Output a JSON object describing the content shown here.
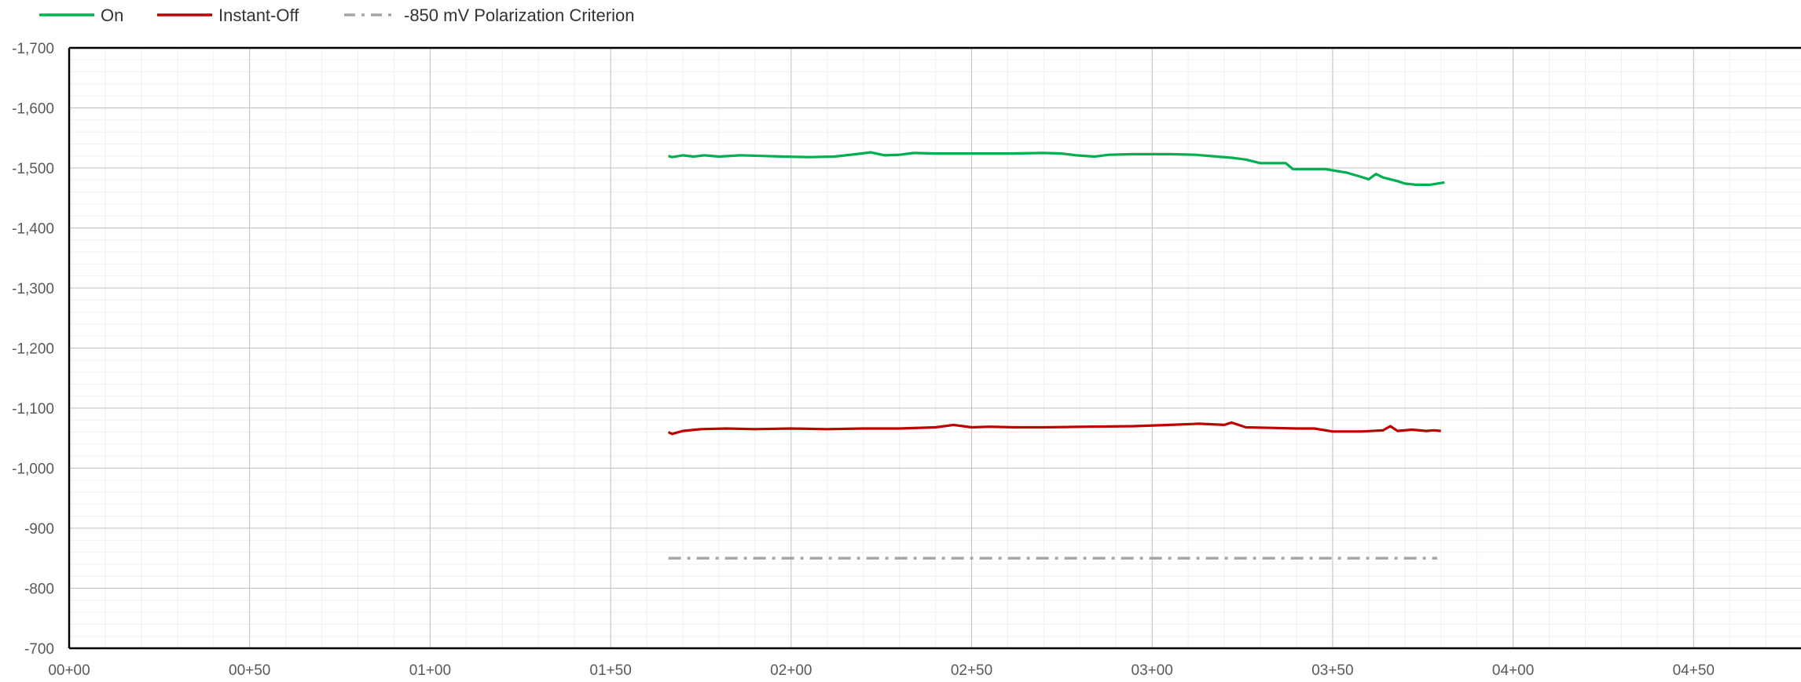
{
  "chart_data": {
    "type": "line",
    "title": "",
    "xlabel": "",
    "ylabel": "",
    "x_ticks": [
      "00+00",
      "00+50",
      "01+00",
      "01+50",
      "02+00",
      "02+50",
      "03+00",
      "03+50",
      "04+00",
      "04+50"
    ],
    "xlim": [
      0,
      480
    ],
    "ylim": [
      -700,
      -1700
    ],
    "y_ticks": [
      -1700,
      -1600,
      -1500,
      -1400,
      -1300,
      -1200,
      -1100,
      -1000,
      -900,
      -800,
      -700
    ],
    "y_tick_labels": [
      "-1,700",
      "-1,600",
      "-1,500",
      "-1,400",
      "-1,300",
      "-1,200",
      "-1,100",
      "-1,000",
      "-900",
      "-800",
      "-700"
    ],
    "grid": true,
    "legend_position": "top-left",
    "series": [
      {
        "name": "On",
        "color": "#00B050",
        "style": "solid",
        "points": [
          [
            166,
            -1520
          ],
          [
            167,
            -1518
          ],
          [
            170,
            -1521
          ],
          [
            173,
            -1519
          ],
          [
            176,
            -1521
          ],
          [
            180,
            -1519
          ],
          [
            186,
            -1521
          ],
          [
            192,
            -1520
          ],
          [
            198,
            -1519
          ],
          [
            205,
            -1518
          ],
          [
            212,
            -1519
          ],
          [
            218,
            -1523
          ],
          [
            222,
            -1526
          ],
          [
            226,
            -1521
          ],
          [
            230,
            -1522
          ],
          [
            234,
            -1525
          ],
          [
            240,
            -1524
          ],
          [
            250,
            -1524
          ],
          [
            260,
            -1524
          ],
          [
            270,
            -1525
          ],
          [
            275,
            -1524
          ],
          [
            279,
            -1521
          ],
          [
            284,
            -1519
          ],
          [
            288,
            -1522
          ],
          [
            295,
            -1523
          ],
          [
            305,
            -1523
          ],
          [
            312,
            -1522
          ],
          [
            318,
            -1519
          ],
          [
            322,
            -1517
          ],
          [
            326,
            -1514
          ],
          [
            330,
            -1508
          ],
          [
            337,
            -1508
          ],
          [
            339,
            -1498
          ],
          [
            348,
            -1498
          ],
          [
            354,
            -1492
          ],
          [
            358,
            -1485
          ],
          [
            360,
            -1481
          ],
          [
            362,
            -1490
          ],
          [
            364,
            -1484
          ],
          [
            368,
            -1478
          ],
          [
            370,
            -1474
          ],
          [
            373,
            -1472
          ],
          [
            377,
            -1472
          ],
          [
            379,
            -1474
          ],
          [
            381,
            -1476
          ]
        ]
      },
      {
        "name": "Instant-Off",
        "color": "#C00000",
        "style": "solid",
        "points": [
          [
            166,
            -1060
          ],
          [
            167,
            -1057
          ],
          [
            170,
            -1062
          ],
          [
            175,
            -1065
          ],
          [
            182,
            -1066
          ],
          [
            190,
            -1065
          ],
          [
            200,
            -1066
          ],
          [
            210,
            -1065
          ],
          [
            220,
            -1066
          ],
          [
            230,
            -1066
          ],
          [
            240,
            -1068
          ],
          [
            245,
            -1072
          ],
          [
            250,
            -1068
          ],
          [
            255,
            -1069
          ],
          [
            262,
            -1068
          ],
          [
            270,
            -1068
          ],
          [
            282,
            -1069
          ],
          [
            295,
            -1070
          ],
          [
            305,
            -1072
          ],
          [
            313,
            -1074
          ],
          [
            320,
            -1072
          ],
          [
            322,
            -1076
          ],
          [
            326,
            -1068
          ],
          [
            333,
            -1067
          ],
          [
            340,
            -1066
          ],
          [
            345,
            -1066
          ],
          [
            350,
            -1061
          ],
          [
            358,
            -1061
          ],
          [
            364,
            -1063
          ],
          [
            366,
            -1070
          ],
          [
            368,
            -1062
          ],
          [
            372,
            -1064
          ],
          [
            376,
            -1062
          ],
          [
            378,
            -1063
          ],
          [
            380,
            -1062
          ]
        ]
      },
      {
        "name": "-850 mV Polarization Criterion",
        "color": "#A6A6A6",
        "style": "dash-dot",
        "points": [
          [
            166,
            -850
          ],
          [
            379,
            -850
          ]
        ]
      }
    ]
  }
}
